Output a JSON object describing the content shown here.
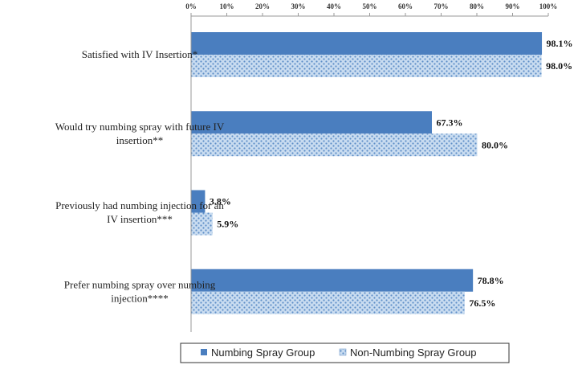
{
  "chart_data": {
    "type": "bar",
    "orientation": "horizontal",
    "categories": [
      [
        "Satisfied with IV Insertion*"
      ],
      [
        "Would try numbing spray with future IV",
        "insertion**"
      ],
      [
        "Previously had numbing injection for an",
        "IV insertion***"
      ],
      [
        "Prefer numbing spray over numbing",
        "injection****"
      ]
    ],
    "series": [
      {
        "name": "Numbing Spray Group",
        "values": [
          98.1,
          67.3,
          3.8,
          78.8
        ],
        "labels": [
          "98.1%",
          "67.3%",
          "3.8%",
          "78.8%"
        ],
        "color": "#4a7ebf",
        "pattern": "solid"
      },
      {
        "name": "Non-Numbing Spray Group",
        "values": [
          98.0,
          80.0,
          5.9,
          76.5
        ],
        "labels": [
          "98.0%",
          "80.0%",
          "5.9%",
          "76.5%"
        ],
        "color": "#8fb3dc",
        "pattern": "dotted"
      }
    ],
    "xticks": [
      "0%",
      "10%",
      "20%",
      "30%",
      "40%",
      "50%",
      "60%",
      "70%",
      "80%",
      "90%",
      "100%"
    ],
    "xlim": [
      0,
      100
    ],
    "xaxis_position": "top",
    "grid": false,
    "legend_position": "bottom"
  }
}
